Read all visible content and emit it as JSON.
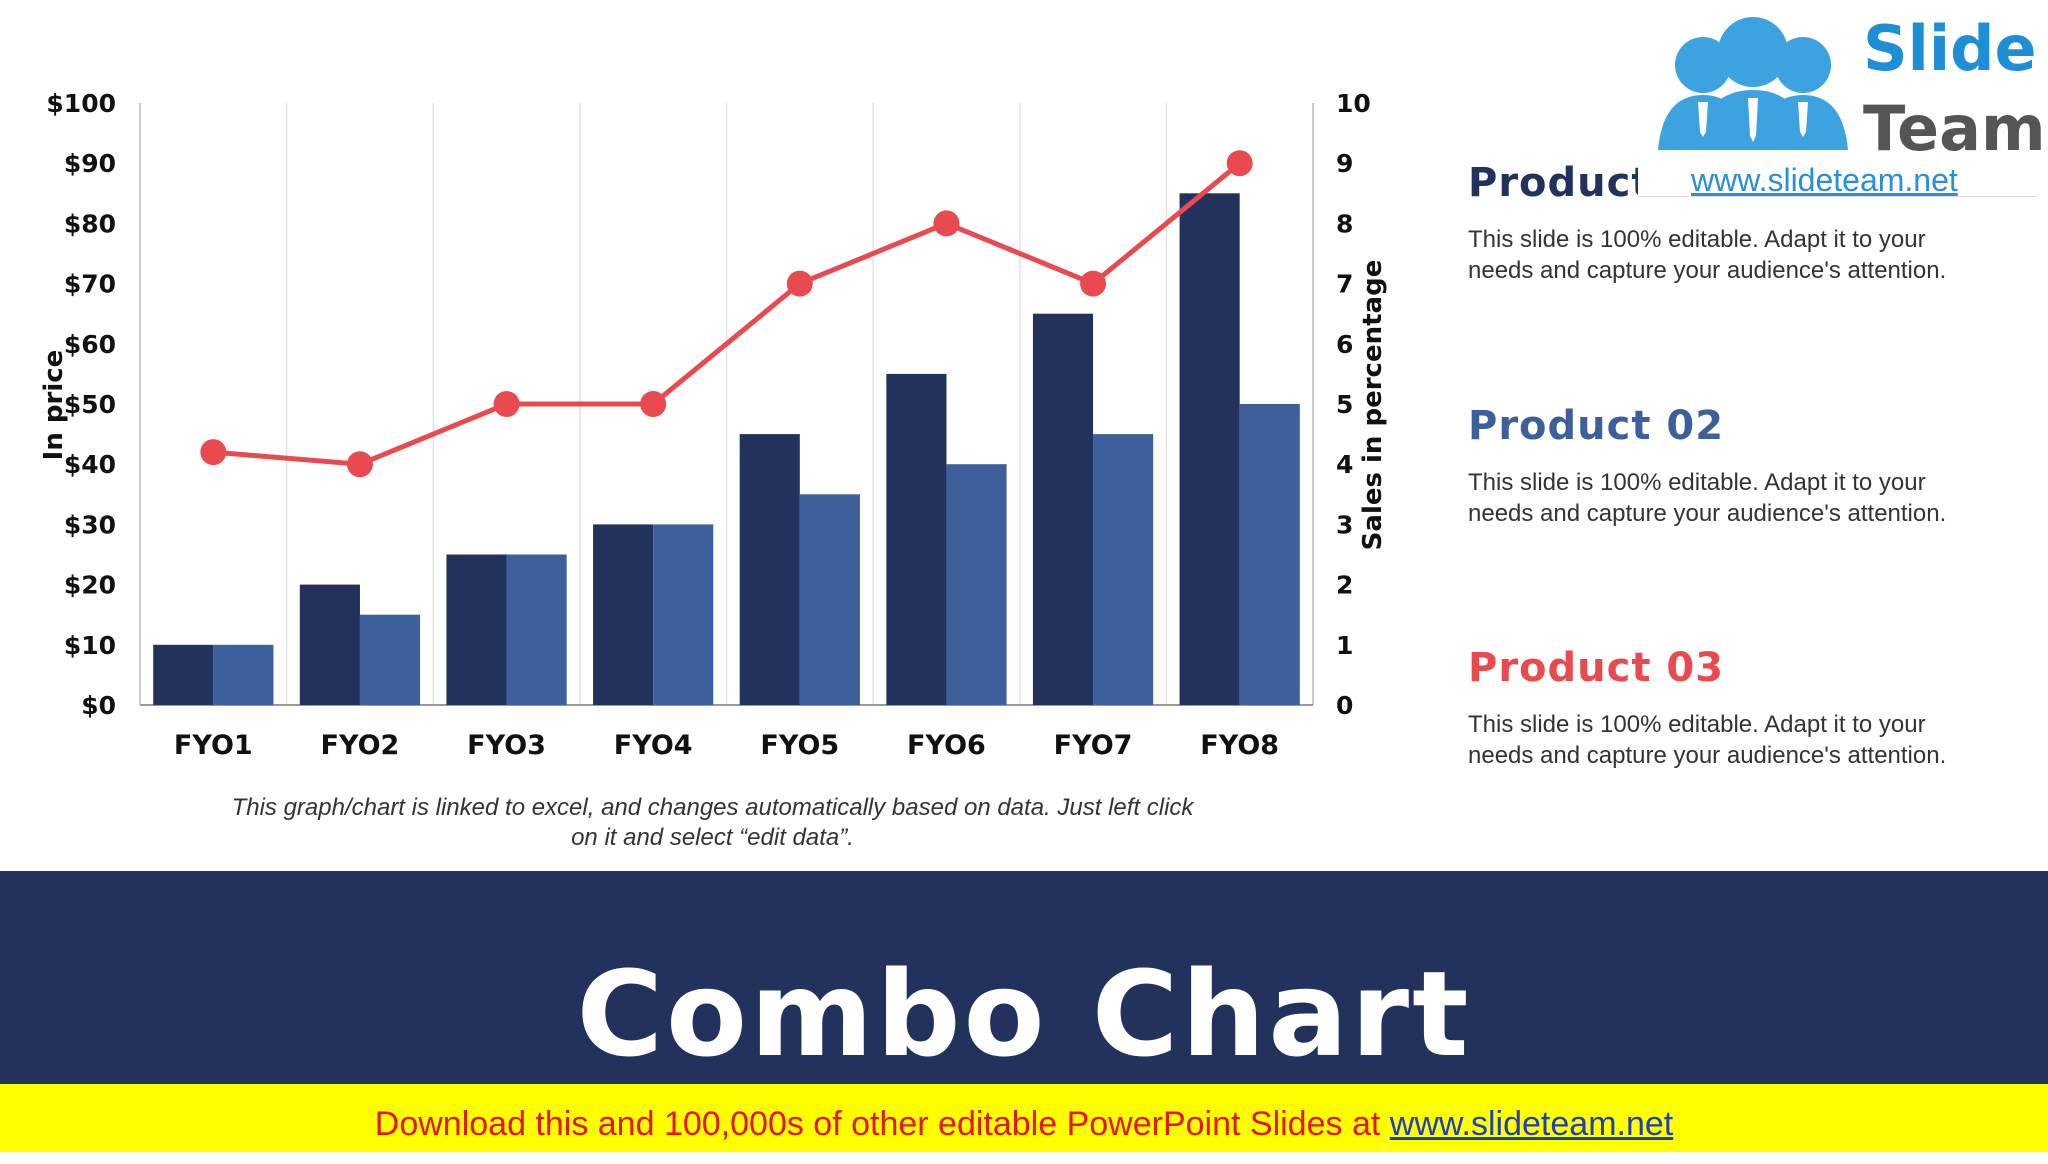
{
  "chart_data": {
    "type": "bar+line",
    "categories": [
      "FYO1",
      "FYO2",
      "FYO3",
      "FYO4",
      "FYO5",
      "FYO6",
      "FYO7",
      "FYO8"
    ],
    "series": [
      {
        "type": "bar",
        "axis": "left",
        "color": "#22325c",
        "values": [
          10,
          20,
          25,
          30,
          45,
          55,
          65,
          85
        ]
      },
      {
        "type": "bar",
        "axis": "left",
        "color": "#3d5f9b",
        "values": [
          10,
          15,
          25,
          30,
          35,
          40,
          45,
          50
        ]
      },
      {
        "type": "line",
        "axis": "right",
        "color": "#e84a4f",
        "values": [
          4.2,
          4,
          5,
          5,
          7,
          8,
          7,
          9
        ]
      }
    ],
    "ylabel": "In price",
    "y2label": "Sales in percentage",
    "ylim": [
      0,
      100
    ],
    "y2lim": [
      0,
      10
    ],
    "yticks": [
      "$0",
      "$10",
      "$20",
      "$30",
      "$40",
      "$50",
      "$60",
      "$70",
      "$80",
      "$90",
      "$100"
    ],
    "y2ticks": [
      "0",
      "1",
      "2",
      "3",
      "4",
      "5",
      "6",
      "7",
      "8",
      "9",
      "10"
    ],
    "grid": "vertical"
  },
  "caption": "This graph/chart is linked to excel, and changes automatically based on data. Just left click on it and select “edit data”.",
  "products": [
    {
      "title": "Product 01",
      "color": "#22325c",
      "text": "This slide is 100% editable. Adapt it to your needs and capture your audience's attention."
    },
    {
      "title": "Product 02",
      "color": "#3d5f9b",
      "text": "This slide is 100% editable. Adapt it to your needs and capture your audience's attention."
    },
    {
      "title": "Product 03",
      "color": "#e84a4f",
      "text": "This slide is 100% editable. Adapt it to your needs and capture your audience's attention."
    }
  ],
  "logo": {
    "line1": "Slide",
    "line2": "Team",
    "url": "www.slideteam.net"
  },
  "title": "Combo Chart",
  "banner": {
    "text": "Download this and 100,000s of other editable PowerPoint Slides at ",
    "link": "www.slideteam.net"
  }
}
